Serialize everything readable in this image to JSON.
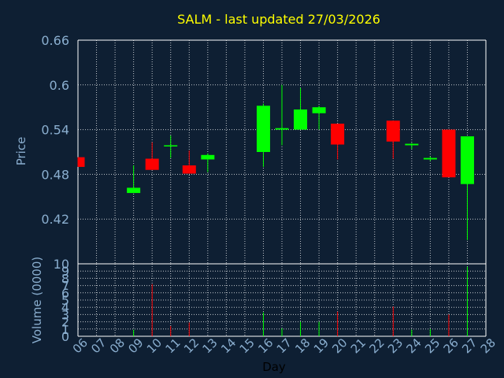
{
  "colors": {
    "background": "#0e1f33",
    "title": "#ffff00",
    "axis_text": "#8aaecf",
    "up": "#00ff00",
    "down": "#ff0000",
    "grid": "#ffffff",
    "xlabel": "#000000"
  },
  "chart_data": [
    {
      "type": "candlestick",
      "title": "SALM - last updated 27/03/2026",
      "ylabel": "Price",
      "ylim": [
        0.36,
        0.66
      ],
      "yticks": [
        "0.66",
        "0.6",
        "0.54",
        "0.48",
        "0.42"
      ],
      "grid": true,
      "series": [
        {
          "day": "06",
          "open": 0.503,
          "high": 0.503,
          "low": 0.49,
          "close": 0.49
        },
        {
          "day": "09",
          "open": 0.455,
          "high": 0.492,
          "low": 0.455,
          "close": 0.462
        },
        {
          "day": "10",
          "open": 0.501,
          "high": 0.523,
          "low": 0.486,
          "close": 0.486
        },
        {
          "day": "11",
          "open": 0.519,
          "high": 0.532,
          "low": 0.502,
          "close": 0.519
        },
        {
          "day": "12",
          "open": 0.492,
          "high": 0.512,
          "low": 0.481,
          "close": 0.481
        },
        {
          "day": "13",
          "open": 0.5,
          "high": 0.508,
          "low": 0.483,
          "close": 0.506
        },
        {
          "day": "16",
          "open": 0.51,
          "high": 0.575,
          "low": 0.49,
          "close": 0.572
        },
        {
          "day": "17",
          "open": 0.54,
          "high": 0.6,
          "low": 0.519,
          "close": 0.542
        },
        {
          "day": "18",
          "open": 0.54,
          "high": 0.596,
          "low": 0.54,
          "close": 0.567
        },
        {
          "day": "19",
          "open": 0.562,
          "high": 0.572,
          "low": 0.54,
          "close": 0.57
        },
        {
          "day": "20",
          "open": 0.548,
          "high": 0.548,
          "low": 0.5,
          "close": 0.52
        },
        {
          "day": "23",
          "open": 0.552,
          "high": 0.552,
          "low": 0.501,
          "close": 0.524
        },
        {
          "day": "24",
          "open": 0.519,
          "high": 0.522,
          "low": 0.514,
          "close": 0.521
        },
        {
          "day": "25",
          "open": 0.5,
          "high": 0.504,
          "low": 0.498,
          "close": 0.502
        },
        {
          "day": "26",
          "open": 0.54,
          "high": 0.54,
          "low": 0.476,
          "close": 0.476
        },
        {
          "day": "27",
          "open": 0.467,
          "high": 0.531,
          "low": 0.392,
          "close": 0.531
        }
      ]
    },
    {
      "type": "bar",
      "ylabel": "Volume (0000)",
      "xlabel": "Day",
      "ylim": [
        0,
        10
      ],
      "yticks": [
        "10",
        "9",
        "8",
        "7",
        "6",
        "5",
        "4",
        "3",
        "2",
        "1",
        "0"
      ],
      "categories": [
        "06",
        "07",
        "08",
        "09",
        "10",
        "11",
        "12",
        "13",
        "14",
        "15",
        "16",
        "17",
        "18",
        "19",
        "20",
        "21",
        "22",
        "23",
        "24",
        "25",
        "26",
        "27",
        "28"
      ],
      "values": [
        {
          "day": "09",
          "value": 0.9,
          "direction": "up"
        },
        {
          "day": "10",
          "value": 7.2,
          "direction": "down"
        },
        {
          "day": "11",
          "value": 1.4,
          "direction": "down"
        },
        {
          "day": "12",
          "value": 1.9,
          "direction": "down"
        },
        {
          "day": "16",
          "value": 3.3,
          "direction": "up"
        },
        {
          "day": "17",
          "value": 1.1,
          "direction": "up"
        },
        {
          "day": "18",
          "value": 2.0,
          "direction": "up"
        },
        {
          "day": "19",
          "value": 2.0,
          "direction": "up"
        },
        {
          "day": "20",
          "value": 3.4,
          "direction": "down"
        },
        {
          "day": "23",
          "value": 4.1,
          "direction": "down"
        },
        {
          "day": "24",
          "value": 0.9,
          "direction": "up"
        },
        {
          "day": "25",
          "value": 1.0,
          "direction": "up"
        },
        {
          "day": "26",
          "value": 3.0,
          "direction": "down"
        },
        {
          "day": "27",
          "value": 9.6,
          "direction": "up"
        }
      ]
    }
  ]
}
